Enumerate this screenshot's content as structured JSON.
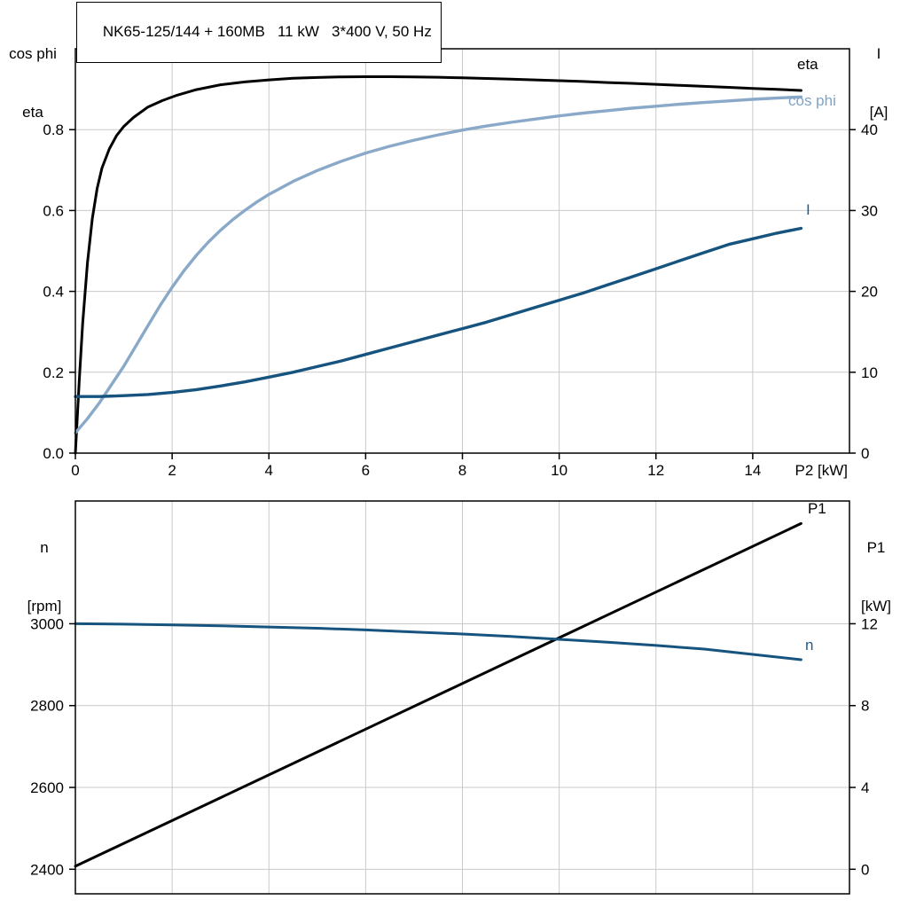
{
  "title_box": {
    "text": "NK65-125/144 + 160MB   11 kW   3*400 V, 50 Hz"
  },
  "colors": {
    "background": "#ffffff",
    "axis": "#000000",
    "grid": "#c9c9c9",
    "text": "#000000",
    "eta_curve": "#000000",
    "cos_phi_curve": "#8aa9c9",
    "current_curve": "#16547f",
    "p1_curve": "#000000",
    "n_curve": "#16547f",
    "cos_phi_label": "#7fa3c8",
    "blue_label": "#1d5c8f"
  },
  "top_chart": {
    "corner_left": [
      "cos phi",
      "eta"
    ],
    "corner_right": [
      "I",
      "[A]"
    ],
    "x_axis_label": "P2 [kW]",
    "curve_label_eta": "eta",
    "curve_label_cos_phi": "cos phi",
    "curve_label_current": "I"
  },
  "bottom_chart": {
    "corner_left": [
      "n",
      "[rpm]"
    ],
    "corner_right": [
      "P1",
      "[kW]"
    ],
    "curve_label_p1": "P1",
    "curve_label_n": "n"
  },
  "chart_data": [
    {
      "type": "line",
      "title": "NK65-125/144 + 160MB   11 kW   3*400 V, 50 Hz",
      "grid": true,
      "legend_position": "inline-right",
      "x_axis": {
        "label": "P2 [kW]",
        "lim": [
          0,
          16
        ],
        "tick_values": [
          0,
          2,
          4,
          6,
          8,
          10,
          12,
          14
        ],
        "tick_labels": [
          "0",
          "2",
          "4",
          "6",
          "8",
          "10",
          "12",
          "14"
        ],
        "show_labels": true
      },
      "left_axis": {
        "label": "cos phi / eta",
        "lim": [
          0,
          1.0
        ],
        "tick_values": [
          0,
          0.2,
          0.4,
          0.6,
          0.8
        ],
        "tick_labels": [
          "0.0",
          "0.2",
          "0.4",
          "0.6",
          "0.8"
        ]
      },
      "right_axis": {
        "label": "I [A]",
        "lim": [
          0,
          50
        ],
        "tick_values": [
          0,
          10,
          20,
          30,
          40
        ],
        "tick_labels": [
          "0",
          "10",
          "20",
          "30",
          "40"
        ]
      },
      "series": [
        {
          "name": "eta",
          "axis": "left",
          "color": "#000000",
          "width": 3,
          "points": [
            [
              0,
              0
            ],
            [
              0.08,
              0.18
            ],
            [
              0.15,
              0.32
            ],
            [
              0.25,
              0.47
            ],
            [
              0.35,
              0.58
            ],
            [
              0.45,
              0.655
            ],
            [
              0.55,
              0.705
            ],
            [
              0.7,
              0.752
            ],
            [
              0.85,
              0.785
            ],
            [
              1.0,
              0.808
            ],
            [
              1.2,
              0.83
            ],
            [
              1.5,
              0.856
            ],
            [
              1.8,
              0.872
            ],
            [
              2.1,
              0.885
            ],
            [
              2.5,
              0.899
            ],
            [
              3,
              0.911
            ],
            [
              3.5,
              0.918
            ],
            [
              4,
              0.923
            ],
            [
              4.5,
              0.927
            ],
            [
              5,
              0.929
            ],
            [
              5.5,
              0.9305
            ],
            [
              6,
              0.931
            ],
            [
              6.5,
              0.931
            ],
            [
              7,
              0.9305
            ],
            [
              7.5,
              0.9295
            ],
            [
              8,
              0.928
            ],
            [
              8.5,
              0.9265
            ],
            [
              9,
              0.925
            ],
            [
              9.5,
              0.923
            ],
            [
              10,
              0.921
            ],
            [
              10.5,
              0.919
            ],
            [
              11,
              0.9165
            ],
            [
              11.5,
              0.9145
            ],
            [
              12,
              0.912
            ],
            [
              12.5,
              0.9095
            ],
            [
              13,
              0.907
            ],
            [
              13.5,
              0.9045
            ],
            [
              14,
              0.902
            ],
            [
              14.5,
              0.8995
            ],
            [
              15,
              0.897
            ]
          ]
        },
        {
          "name": "cos phi",
          "axis": "left",
          "color": "#8aa9c9",
          "width": 3.4,
          "points": [
            [
              0,
              0.05
            ],
            [
              0.25,
              0.085
            ],
            [
              0.5,
              0.125
            ],
            [
              0.75,
              0.17
            ],
            [
              1,
              0.215
            ],
            [
              1.25,
              0.265
            ],
            [
              1.5,
              0.315
            ],
            [
              1.75,
              0.365
            ],
            [
              2,
              0.41
            ],
            [
              2.25,
              0.452
            ],
            [
              2.5,
              0.489
            ],
            [
              2.75,
              0.522
            ],
            [
              3,
              0.551
            ],
            [
              3.25,
              0.577
            ],
            [
              3.5,
              0.6
            ],
            [
              3.75,
              0.621
            ],
            [
              4,
              0.64
            ],
            [
              4.5,
              0.672
            ],
            [
              5,
              0.699
            ],
            [
              5.5,
              0.722
            ],
            [
              6,
              0.742
            ],
            [
              6.5,
              0.759
            ],
            [
              7,
              0.774
            ],
            [
              7.5,
              0.787
            ],
            [
              8,
              0.799
            ],
            [
              8.5,
              0.809
            ],
            [
              9,
              0.818
            ],
            [
              9.5,
              0.826
            ],
            [
              10,
              0.834
            ],
            [
              10.5,
              0.841
            ],
            [
              11,
              0.847
            ],
            [
              11.5,
              0.853
            ],
            [
              12,
              0.858
            ],
            [
              12.5,
              0.863
            ],
            [
              13,
              0.867
            ],
            [
              13.5,
              0.871
            ],
            [
              14,
              0.875
            ],
            [
              14.5,
              0.878
            ],
            [
              15,
              0.881
            ]
          ]
        },
        {
          "name": "I",
          "axis": "right",
          "color": "#16547f",
          "width": 3.4,
          "points": [
            [
              0,
              7
            ],
            [
              0.5,
              7
            ],
            [
              1,
              7.1
            ],
            [
              1.5,
              7.25
            ],
            [
              2,
              7.5
            ],
            [
              2.5,
              7.85
            ],
            [
              3,
              8.3
            ],
            [
              3.5,
              8.8
            ],
            [
              4,
              9.4
            ],
            [
              4.5,
              10
            ],
            [
              5,
              10.7
            ],
            [
              5.5,
              11.4
            ],
            [
              6,
              12.2
            ],
            [
              6.5,
              13
            ],
            [
              7,
              13.8
            ],
            [
              7.5,
              14.6
            ],
            [
              8,
              15.4
            ],
            [
              8.5,
              16.2
            ],
            [
              9,
              17.1
            ],
            [
              9.5,
              18
            ],
            [
              10,
              18.9
            ],
            [
              10.5,
              19.8
            ],
            [
              11,
              20.8
            ],
            [
              11.5,
              21.8
            ],
            [
              12,
              22.8
            ],
            [
              12.5,
              23.8
            ],
            [
              13,
              24.8
            ],
            [
              13.5,
              25.8
            ],
            [
              14,
              26.5
            ],
            [
              14.5,
              27.2
            ],
            [
              15,
              27.8
            ]
          ]
        }
      ]
    },
    {
      "type": "line",
      "title": "",
      "grid": true,
      "legend_position": "inline-right",
      "x_axis": {
        "label": "",
        "lim": [
          0,
          16
        ],
        "tick_values": [
          0,
          2,
          4,
          6,
          8,
          10,
          12,
          14
        ],
        "tick_labels": [],
        "show_labels": false
      },
      "left_axis": {
        "label": "n [rpm]",
        "lim": [
          2340,
          3300
        ],
        "tick_values": [
          2400,
          2600,
          2800,
          3000
        ],
        "tick_labels": [
          "2400",
          "2600",
          "2800",
          "3000"
        ]
      },
      "right_axis": {
        "label": "P1 [kW]",
        "lim": [
          -1.2,
          18.0
        ],
        "tick_values": [
          0,
          4,
          8,
          12
        ],
        "tick_labels": [
          "0",
          "4",
          "8",
          "12"
        ]
      },
      "series": [
        {
          "name": "P1",
          "axis": "right",
          "color": "#000000",
          "width": 3,
          "points": [
            [
              0,
              0.15
            ],
            [
              3,
              3.5
            ],
            [
              6,
              6.85
            ],
            [
              9,
              10.2
            ],
            [
              12,
              13.55
            ],
            [
              15,
              16.9
            ]
          ]
        },
        {
          "name": "n",
          "axis": "left",
          "color": "#16547f",
          "width": 3,
          "points": [
            [
              0,
              3000
            ],
            [
              1,
              2999
            ],
            [
              2,
              2997
            ],
            [
              3,
              2995
            ],
            [
              4,
              2992
            ],
            [
              5,
              2989
            ],
            [
              6,
              2985
            ],
            [
              7,
              2980
            ],
            [
              8,
              2975
            ],
            [
              9,
              2969
            ],
            [
              10,
              2962
            ],
            [
              11,
              2955
            ],
            [
              12,
              2947
            ],
            [
              13,
              2938
            ],
            [
              14,
              2925
            ],
            [
              15,
              2912
            ]
          ]
        }
      ]
    }
  ]
}
